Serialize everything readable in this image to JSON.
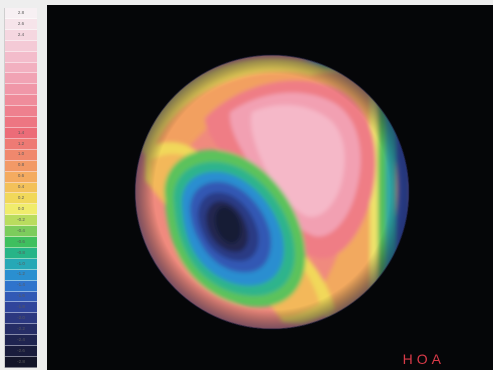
{
  "map_label": "HOA",
  "scale": {
    "steps": [
      {
        "label": "2.8",
        "color": "#f7f0f3"
      },
      {
        "label": "2.6",
        "color": "#f6e4ea"
      },
      {
        "label": "2.4",
        "color": "#f5d7e0"
      },
      {
        "label": "",
        "color": "#f4cad6"
      },
      {
        "label": "",
        "color": "#f3bccb"
      },
      {
        "label": "",
        "color": "#f2b0c0"
      },
      {
        "label": "",
        "color": "#f1a3b4"
      },
      {
        "label": "",
        "color": "#f097a8"
      },
      {
        "label": "",
        "color": "#ef8c9b"
      },
      {
        "label": "",
        "color": "#ee808e"
      },
      {
        "label": "",
        "color": "#ed7682"
      },
      {
        "label": "1.4",
        "color": "#ec6c78"
      },
      {
        "label": "1.2",
        "color": "#ee7a74"
      },
      {
        "label": "1.0",
        "color": "#f0886d"
      },
      {
        "label": "0.8",
        "color": "#f29966"
      },
      {
        "label": "0.6",
        "color": "#f4ab60"
      },
      {
        "label": "0.4",
        "color": "#f3c15a"
      },
      {
        "label": "0.2",
        "color": "#f1d85a"
      },
      {
        "label": "0.0",
        "color": "#f0ec6c"
      },
      {
        "label": "-0.2",
        "color": "#b9dc5e"
      },
      {
        "label": "-0.4",
        "color": "#7ccc5c"
      },
      {
        "label": "-0.6",
        "color": "#3fbf5e"
      },
      {
        "label": "-0.8",
        "color": "#27b487"
      },
      {
        "label": "-1.0",
        "color": "#27a8b6"
      },
      {
        "label": "-1.2",
        "color": "#2a8fd0"
      },
      {
        "label": "-1.4",
        "color": "#2f74cc"
      },
      {
        "label": "-1.6",
        "color": "#3159b5"
      },
      {
        "label": "-1.8",
        "color": "#30459b"
      },
      {
        "label": "-2.0",
        "color": "#2c3880"
      },
      {
        "label": "-2.2",
        "color": "#262d66"
      },
      {
        "label": "-2.4",
        "color": "#1f2450"
      },
      {
        "label": "-2.6",
        "color": "#191c3c"
      },
      {
        "label": "-2.8",
        "color": "#131529"
      }
    ]
  },
  "colors": {
    "background": "#050608",
    "page": "#eeeeee",
    "label": "#d93a48"
  }
}
